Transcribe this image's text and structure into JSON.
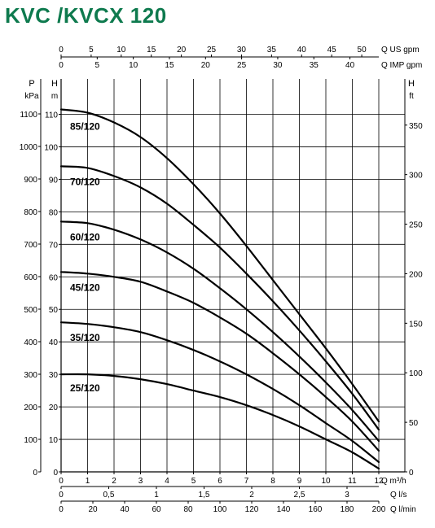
{
  "title": "KVC /KVCX 120",
  "colors": {
    "title": "#0e7a4e",
    "curve": "#000000",
    "grid": "#000000"
  },
  "chart_data": {
    "type": "line",
    "title": "KVC /KVCX 120",
    "grid": true,
    "x_axes": {
      "m3h": {
        "label": "Q m³/h",
        "ticks": [
          "0",
          "1",
          "2",
          "3",
          "4",
          "5",
          "6",
          "7",
          "8",
          "9",
          "10",
          "11",
          "12"
        ],
        "range": [
          0,
          12
        ]
      },
      "ls": {
        "label": "Q l/s",
        "ticks": [
          "0",
          "0,5",
          "1",
          "1,5",
          "2",
          "2,5",
          "3"
        ]
      },
      "lmin": {
        "label": "Q l/min",
        "ticks": [
          "0",
          "20",
          "40",
          "60",
          "80",
          "100",
          "120",
          "140",
          "160",
          "180",
          "200"
        ]
      },
      "usgpm": {
        "label": "Q US gpm",
        "ticks": [
          "0",
          "5",
          "10",
          "15",
          "20",
          "25",
          "30",
          "35",
          "40",
          "45",
          "50"
        ]
      },
      "impgpm": {
        "label": "Q IMP gpm",
        "ticks": [
          "0",
          "5",
          "10",
          "15",
          "20",
          "25",
          "30",
          "35",
          "40"
        ]
      }
    },
    "y_axes": {
      "kpa": {
        "label_top": "P",
        "label_unit": "kPa",
        "ticks": [
          "0",
          "100",
          "200",
          "300",
          "400",
          "500",
          "600",
          "700",
          "800",
          "900",
          "1000",
          "1100"
        ]
      },
      "m": {
        "label_top": "H",
        "label_unit": "m",
        "ticks": [
          "0",
          "10",
          "20",
          "30",
          "40",
          "50",
          "60",
          "70",
          "80",
          "90",
          "100",
          "110"
        ],
        "range": [
          0,
          115
        ]
      },
      "ft": {
        "label_top": "H",
        "label_unit": "ft",
        "ticks": [
          "0",
          "50",
          "100",
          "150",
          "200",
          "250",
          "300",
          "350"
        ]
      }
    },
    "series": [
      {
        "name": "85/120",
        "x": [
          0,
          1,
          2,
          3,
          4,
          5,
          6,
          7,
          8,
          9,
          10,
          11,
          12
        ],
        "y": [
          111.5,
          110.5,
          107.5,
          103,
          96.5,
          88.5,
          79.5,
          69.5,
          59,
          48.5,
          38,
          27,
          15.5
        ]
      },
      {
        "name": "70/120",
        "x": [
          0,
          1,
          2,
          3,
          4,
          5,
          6,
          7,
          8,
          9,
          10,
          11,
          12
        ],
        "y": [
          94,
          93.5,
          91,
          87.5,
          82.5,
          76,
          69,
          61,
          52.5,
          43.5,
          34,
          24,
          13
        ]
      },
      {
        "name": "60/120",
        "x": [
          0,
          1,
          2,
          3,
          4,
          5,
          6,
          7,
          8,
          9,
          10,
          11,
          12
        ],
        "y": [
          77,
          76.5,
          74.5,
          71.5,
          67.5,
          62.5,
          56.5,
          50,
          43,
          35.5,
          27.5,
          19,
          9.5
        ]
      },
      {
        "name": "45/120",
        "x": [
          0,
          1,
          2,
          3,
          4,
          5,
          6,
          7,
          8,
          9,
          10,
          11,
          12
        ],
        "y": [
          61.5,
          61,
          60,
          58.5,
          55.5,
          52,
          47.5,
          42.5,
          36.5,
          30,
          23,
          15.5,
          6.5
        ]
      },
      {
        "name": "35/120",
        "x": [
          0,
          1,
          2,
          3,
          4,
          5,
          6,
          7,
          8,
          9,
          10,
          11,
          12
        ],
        "y": [
          46,
          45.5,
          44.5,
          43,
          40.5,
          37.5,
          34,
          30,
          25.5,
          20.5,
          15,
          9.5,
          3
        ]
      },
      {
        "name": "25/120",
        "x": [
          0,
          1,
          2,
          3,
          4,
          5,
          6,
          7,
          8,
          9,
          10,
          11,
          12
        ],
        "y": [
          30,
          30,
          29.5,
          28.5,
          27,
          25,
          23,
          20.5,
          17.5,
          14,
          10,
          6,
          1
        ]
      }
    ]
  }
}
